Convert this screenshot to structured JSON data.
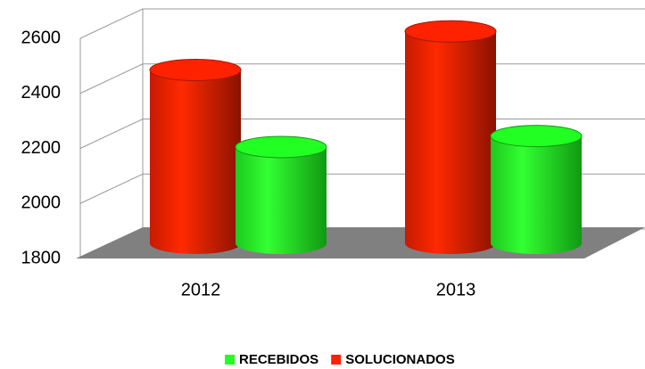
{
  "chart_data": {
    "type": "bar3d",
    "categories": [
      "2012",
      "2013"
    ],
    "series": [
      {
        "name": "RECEBIDOS",
        "color": "#22ff22",
        "values": [
          2150,
          2190
        ]
      },
      {
        "name": "SOLUCIONADOS",
        "color": "#ff2200",
        "values": [
          2430,
          2570
        ]
      }
    ],
    "ylim": [
      1800,
      2600
    ],
    "yticks": [
      1800,
      2000,
      2200,
      2400,
      2600
    ],
    "grid": true,
    "legend": "bottom"
  }
}
